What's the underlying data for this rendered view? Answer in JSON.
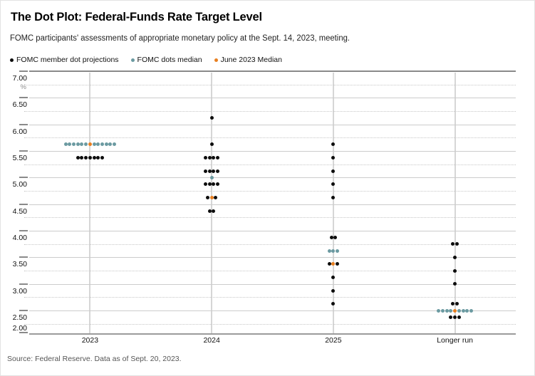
{
  "header": {
    "title": "The Dot Plot: Federal-Funds Rate Target Level",
    "subtitle": "FOMC participants' assessments of appropriate monetary policy at the Sept. 14, 2023, meeting."
  },
  "legend": {
    "items": [
      {
        "label": "FOMC member dot projections",
        "color_key": "black"
      },
      {
        "label": "FOMC dots median",
        "color_key": "teal"
      },
      {
        "label": "June 2023 Median",
        "color_key": "orange"
      }
    ]
  },
  "footer": {
    "source": "Source: Federal Reserve. Data as of Sept. 20, 2023."
  },
  "colors": {
    "black": "#0d0d0d",
    "teal": "#6b9aa1",
    "orange": "#e87f20",
    "grid_solid": "#cccccc",
    "grid_dotted": "#c6c6c6",
    "axis_dark": "#8a8a8a",
    "column_line": "#d6d6d6"
  },
  "chart_data": {
    "type": "scatter",
    "title": "The Dot Plot: Federal-Funds Rate Target Level",
    "unit_label": "%",
    "legend_position": "top-left",
    "grid": "horizontal solid at half-point levels, dotted at quarter levels",
    "y_axis": {
      "range": [
        2.0,
        7.0
      ],
      "tick_labels": [
        "7.00",
        "6.50",
        "6.00",
        "5.50",
        "5.00",
        "4.50",
        "4.00",
        "3.50",
        "3.00",
        "2.50"
      ],
      "bottom_label": "2.00",
      "dotted_values": [
        6.75,
        6.25,
        5.75,
        5.25,
        4.75,
        4.25,
        3.75,
        3.25,
        2.75,
        2.25
      ]
    },
    "columns": [
      {
        "label": "2023",
        "rows": [
          {
            "value": 5.625,
            "dots": [
              "teal",
              "teal",
              "teal",
              "teal",
              "teal",
              "teal",
              "orange",
              "teal",
              "teal",
              "teal",
              "teal",
              "teal",
              "teal"
            ]
          },
          {
            "value": 5.375,
            "dots": [
              "black",
              "black",
              "black",
              "black",
              "black",
              "black",
              "black"
            ]
          }
        ]
      },
      {
        "label": "2024",
        "rows": [
          {
            "value": 6.125,
            "dots": [
              "black"
            ]
          },
          {
            "value": 5.625,
            "dots": [
              "black"
            ]
          },
          {
            "value": 5.375,
            "dots": [
              "black",
              "black",
              "black",
              "black"
            ]
          },
          {
            "value": 5.125,
            "dots": [
              "black",
              "black",
              "black",
              "black"
            ]
          },
          {
            "value": 5.0,
            "dots": [
              "teal"
            ]
          },
          {
            "value": 4.875,
            "dots": [
              "black",
              "black",
              "black",
              "black"
            ]
          },
          {
            "value": 4.625,
            "dots": [
              "black",
              "orange",
              "black"
            ]
          },
          {
            "value": 4.375,
            "dots": [
              "black",
              "black"
            ]
          }
        ]
      },
      {
        "label": "2025",
        "rows": [
          {
            "value": 5.625,
            "dots": [
              "black"
            ]
          },
          {
            "value": 5.375,
            "dots": [
              "black"
            ]
          },
          {
            "value": 5.125,
            "dots": [
              "black"
            ]
          },
          {
            "value": 4.875,
            "dots": [
              "black"
            ]
          },
          {
            "value": 4.625,
            "dots": [
              "black"
            ]
          },
          {
            "value": 3.875,
            "dots": [
              "black",
              "black"
            ]
          },
          {
            "value": 3.625,
            "dots": [
              "teal",
              "teal",
              "teal"
            ]
          },
          {
            "value": 3.375,
            "dots": [
              "black",
              "orange",
              "black"
            ]
          },
          {
            "value": 3.125,
            "dots": [
              "black"
            ]
          },
          {
            "value": 2.875,
            "dots": [
              "black"
            ]
          },
          {
            "value": 2.625,
            "dots": [
              "black"
            ]
          }
        ]
      },
      {
        "label": "Longer run",
        "rows": [
          {
            "value": 3.75,
            "dots": [
              "black",
              "black"
            ]
          },
          {
            "value": 3.5,
            "dots": [
              "black"
            ]
          },
          {
            "value": 3.25,
            "dots": [
              "black"
            ]
          },
          {
            "value": 3.0,
            "dots": [
              "black"
            ]
          },
          {
            "value": 2.625,
            "dots": [
              "black",
              "black"
            ]
          },
          {
            "value": 2.5,
            "dots": [
              "teal",
              "teal",
              "teal",
              "teal",
              "orange",
              "teal",
              "teal",
              "teal",
              "teal"
            ]
          },
          {
            "value": 2.375,
            "dots": [
              "black",
              "black",
              "black"
            ]
          }
        ]
      }
    ]
  }
}
